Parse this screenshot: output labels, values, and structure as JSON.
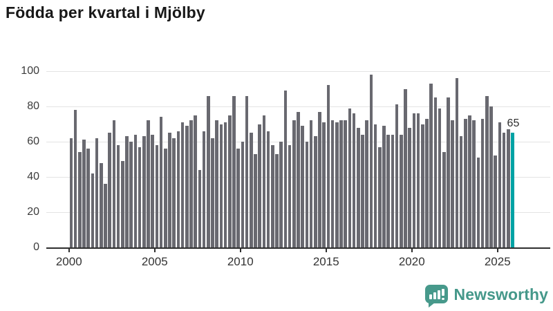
{
  "title": "Födda per kvartal i Mjölby",
  "chart_data": {
    "type": "bar",
    "title": "Födda per kvartal i Mjölby",
    "x_start_year": 2000,
    "periods_per_year": 4,
    "x_tick_labels": [
      "2000",
      "2005",
      "2010",
      "2015",
      "2020",
      "2025"
    ],
    "y_tick_values": [
      0,
      20,
      40,
      60,
      80,
      100
    ],
    "ylim": [
      0,
      100
    ],
    "grid": true,
    "bar_color": "#696970",
    "highlight_color": "#00a2a4",
    "highlight_index": 103,
    "highlight_value_label": "65",
    "values": [
      62,
      78,
      54,
      61,
      56,
      42,
      62,
      48,
      36,
      65,
      72,
      58,
      49,
      63,
      60,
      64,
      57,
      63,
      72,
      64,
      58,
      74,
      56,
      65,
      62,
      66,
      71,
      69,
      72,
      75,
      44,
      66,
      86,
      62,
      72,
      70,
      71,
      75,
      86,
      56,
      60,
      86,
      65,
      53,
      70,
      75,
      66,
      58,
      53,
      60,
      89,
      58,
      72,
      77,
      69,
      60,
      72,
      63,
      77,
      71,
      92,
      72,
      71,
      72,
      72,
      79,
      76,
      68,
      64,
      72,
      98,
      70,
      57,
      69,
      64,
      64,
      81,
      64,
      90,
      68,
      76,
      76,
      70,
      73,
      93,
      85,
      79,
      54,
      85,
      72,
      96,
      63,
      73,
      75,
      72,
      51,
      73,
      86,
      80,
      52,
      71,
      65,
      67,
      65
    ]
  },
  "logo": {
    "text": "Newsworthy"
  }
}
